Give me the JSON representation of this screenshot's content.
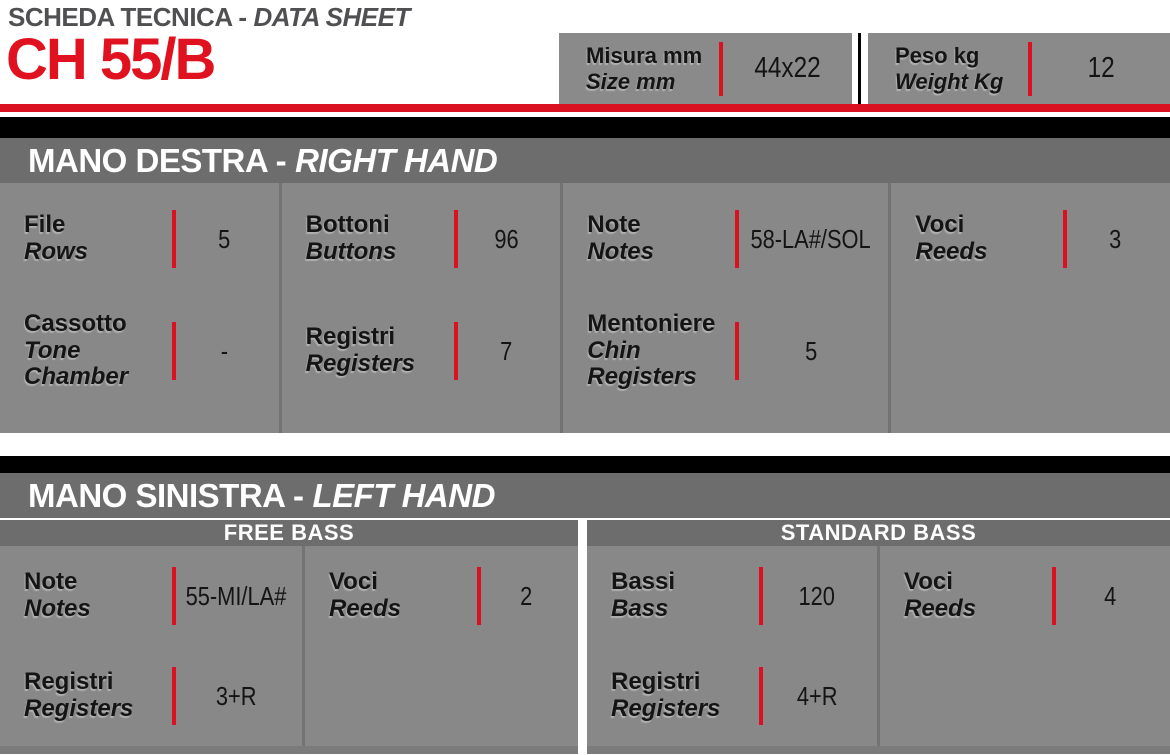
{
  "header": {
    "sheet_title_it": "SCHEDA TECNICA -",
    "sheet_title_en": "DATA SHEET",
    "model": "CH 55/B",
    "top_specs": [
      {
        "label_it": "Misura mm",
        "label_en": "Size mm",
        "value": "44x22"
      },
      {
        "label_it": "Peso kg",
        "label_en": "Weight Kg",
        "value": "12"
      }
    ]
  },
  "colors": {
    "accent_red": "#d91120",
    "header_gray": "#6d6d6d",
    "cell_gray": "#888888",
    "black": "#000000"
  },
  "right_hand": {
    "title_it": "MANO DESTRA -",
    "title_en": "RIGHT HAND",
    "columns": [
      {
        "cells": [
          {
            "label_it": "File",
            "label_en": "Rows",
            "value": "5"
          },
          {
            "label_it": "Cassotto",
            "label_en": "Tone Chamber",
            "value": "-"
          }
        ]
      },
      {
        "cells": [
          {
            "label_it": "Bottoni",
            "label_en": "Buttons",
            "value": "96"
          },
          {
            "label_it": "Registri",
            "label_en": "Registers",
            "value": "7"
          }
        ]
      },
      {
        "cells": [
          {
            "label_it": "Note",
            "label_en": "Notes",
            "value": "58-LA#/SOL"
          },
          {
            "label_it": "Mentoniere",
            "label_en": "Chin Registers",
            "value": "5"
          }
        ]
      },
      {
        "cells": [
          {
            "label_it": "Voci",
            "label_en": "Reeds",
            "value": "3"
          }
        ]
      }
    ]
  },
  "left_hand": {
    "title_it": "MANO SINISTRA -",
    "title_en": "LEFT HAND",
    "free_bass": {
      "title": "FREE BASS",
      "columns": [
        {
          "cells": [
            {
              "label_it": "Note",
              "label_en": "Notes",
              "value": "55-MI/LA#"
            },
            {
              "label_it": "Registri",
              "label_en": "Registers",
              "value": "3+R"
            }
          ]
        },
        {
          "cells": [
            {
              "label_it": "Voci",
              "label_en": "Reeds",
              "value": "2"
            }
          ]
        }
      ]
    },
    "standard_bass": {
      "title": "STANDARD BASS",
      "columns": [
        {
          "cells": [
            {
              "label_it": "Bassi",
              "label_en": "Bass",
              "value": "120"
            },
            {
              "label_it": "Registri",
              "label_en": "Registers",
              "value": "4+R"
            }
          ]
        },
        {
          "cells": [
            {
              "label_it": "Voci",
              "label_en": "Reeds",
              "value": "4"
            }
          ]
        }
      ]
    }
  }
}
